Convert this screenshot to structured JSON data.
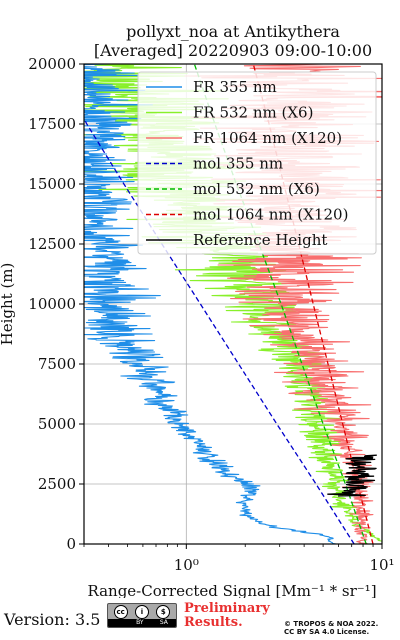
{
  "chart_data": {
    "type": "line",
    "title": "pollyxt_noa at Antikythera",
    "subtitle": "[Averaged] 20220903 09:00-10:00",
    "xlabel": "Range-Corrected Signal [Mm⁻¹ * sr⁻¹]",
    "ylabel": "Height (m)",
    "xscale": "log",
    "xlim": [
      0.3,
      10
    ],
    "ylim": [
      0,
      20000
    ],
    "x_ticks": [
      {
        "value": 1,
        "label": "10⁰"
      },
      {
        "value": 10,
        "label": "10¹"
      }
    ],
    "y_ticks": [
      0,
      2500,
      5000,
      7500,
      10000,
      12500,
      15000,
      17500,
      20000
    ],
    "y_tick_labels": [
      "0",
      "2500",
      "5000",
      "7500",
      "10000",
      "12500",
      "15000",
      "17500",
      "20000"
    ],
    "grid": true,
    "legend_position": "top-right",
    "series": [
      {
        "name": "FR 355 nm",
        "color": "#1f8ee8",
        "style": "solid",
        "kind": "noisy",
        "points": [
          [
            0,
            5.8
          ],
          [
            120,
            5.3
          ],
          [
            250,
            5.5
          ],
          [
            400,
            5.0
          ],
          [
            500,
            4.0
          ],
          [
            700,
            2.8
          ],
          [
            1000,
            2.2
          ],
          [
            1400,
            2.0
          ],
          [
            1800,
            2.0
          ],
          [
            2200,
            2.2
          ],
          [
            2600,
            2.0
          ],
          [
            3000,
            1.6
          ],
          [
            3500,
            1.3
          ],
          [
            4000,
            1.2
          ],
          [
            4500,
            1.05
          ],
          [
            5000,
            0.9
          ],
          [
            5500,
            0.85
          ],
          [
            6000,
            0.75
          ],
          [
            6500,
            0.72
          ],
          [
            7000,
            0.62
          ],
          [
            7500,
            0.58
          ],
          [
            8000,
            0.5
          ],
          [
            8500,
            0.45
          ],
          [
            9000,
            0.45
          ],
          [
            10000,
            0.42
          ],
          [
            11000,
            0.4
          ],
          [
            12000,
            0.38
          ],
          [
            13000,
            0.36
          ],
          [
            14000,
            0.35
          ],
          [
            15000,
            0.34
          ],
          [
            16000,
            0.33
          ],
          [
            17000,
            0.33
          ],
          [
            18000,
            0.33
          ],
          [
            19000,
            0.33
          ],
          [
            20000,
            0.33
          ]
        ],
        "noise": [
          [
            0,
            0.01
          ],
          [
            3000,
            0.03
          ],
          [
            6000,
            0.05
          ],
          [
            8000,
            0.09
          ],
          [
            10000,
            0.12
          ],
          [
            13000,
            0.1
          ],
          [
            20000,
            0.12
          ]
        ]
      },
      {
        "name": "FR 532 nm (X6)",
        "color": "#88f02a",
        "style": "solid",
        "kind": "noisy",
        "points": [
          [
            0,
            10.5
          ],
          [
            300,
            9.0
          ],
          [
            800,
            7.5
          ],
          [
            1500,
            6.5
          ],
          [
            2000,
            6.0
          ],
          [
            3000,
            5.5
          ],
          [
            4000,
            5.0
          ],
          [
            5000,
            4.6
          ],
          [
            6000,
            4.2
          ],
          [
            7000,
            3.8
          ],
          [
            8000,
            3.3
          ],
          [
            9000,
            2.8
          ],
          [
            10000,
            2.4
          ],
          [
            11000,
            2.0
          ],
          [
            12000,
            1.7
          ],
          [
            13000,
            1.3
          ],
          [
            14000,
            1.1
          ],
          [
            15000,
            0.9
          ],
          [
            16000,
            0.8
          ],
          [
            17000,
            0.7
          ],
          [
            18000,
            0.6
          ],
          [
            19000,
            0.5
          ],
          [
            20000,
            0.5
          ]
        ],
        "noise": [
          [
            0,
            0.01
          ],
          [
            4000,
            0.05
          ],
          [
            7000,
            0.08
          ],
          [
            10000,
            0.12
          ],
          [
            13000,
            0.18
          ],
          [
            20000,
            0.22
          ]
        ]
      },
      {
        "name": "FR 1064 nm (X120)",
        "color": "#f87070",
        "style": "solid",
        "kind": "noisy",
        "points": [
          [
            0,
            8.0
          ],
          [
            1500,
            7.8
          ],
          [
            3000,
            7.3
          ],
          [
            4000,
            6.7
          ],
          [
            5000,
            6.0
          ],
          [
            6000,
            5.4
          ],
          [
            7000,
            4.8
          ],
          [
            8000,
            4.3
          ],
          [
            9000,
            3.8
          ],
          [
            10000,
            3.6
          ],
          [
            11000,
            3.5
          ],
          [
            12000,
            3.4
          ],
          [
            13000,
            3.4
          ],
          [
            14000,
            3.5
          ],
          [
            15000,
            3.5
          ],
          [
            16000,
            3.5
          ],
          [
            17000,
            3.5
          ],
          [
            18000,
            3.5
          ],
          [
            19000,
            3.5
          ],
          [
            20000,
            3.5
          ]
        ],
        "noise": [
          [
            0,
            0.02
          ],
          [
            3000,
            0.04
          ],
          [
            5000,
            0.07
          ],
          [
            7000,
            0.09
          ],
          [
            10000,
            0.14
          ],
          [
            13000,
            0.2
          ],
          [
            20000,
            0.25
          ]
        ]
      },
      {
        "name": "mol 355 nm",
        "color": "#0000cc",
        "style": "dashed",
        "kind": "smooth",
        "points": [
          [
            0,
            7.2
          ],
          [
            2500,
            4.6
          ],
          [
            5000,
            2.9
          ],
          [
            7500,
            1.85
          ],
          [
            10000,
            1.18
          ],
          [
            12500,
            0.75
          ],
          [
            15000,
            0.48
          ],
          [
            17500,
            0.31
          ],
          [
            18200,
            0.28
          ]
        ]
      },
      {
        "name": "mol 532 nm (X6)",
        "color": "#00bb00",
        "style": "dashed",
        "kind": "smooth",
        "points": [
          [
            0,
            8.3
          ],
          [
            2500,
            6.5
          ],
          [
            5000,
            5.0
          ],
          [
            7500,
            3.9
          ],
          [
            10000,
            3.05
          ],
          [
            12500,
            2.35
          ],
          [
            15000,
            1.8
          ],
          [
            17500,
            1.4
          ],
          [
            20000,
            1.1
          ]
        ]
      },
      {
        "name": "mol 1064 nm (X120)",
        "color": "#dd0000",
        "style": "dashed",
        "kind": "smooth",
        "points": [
          [
            0,
            9.0
          ],
          [
            2500,
            7.5
          ],
          [
            5000,
            6.3
          ],
          [
            7500,
            5.3
          ],
          [
            10000,
            4.45
          ],
          [
            12500,
            3.75
          ],
          [
            15000,
            3.15
          ],
          [
            17500,
            2.65
          ],
          [
            20000,
            2.2
          ]
        ]
      },
      {
        "name": "Reference Height",
        "color": "#000000",
        "style": "solid",
        "kind": "noisy",
        "points": [
          [
            2000,
            7.0
          ],
          [
            2500,
            7.3
          ],
          [
            3000,
            7.5
          ],
          [
            3500,
            7.4
          ],
          [
            3700,
            8.4
          ]
        ],
        "noise": [
          [
            2000,
            0.05
          ],
          [
            3700,
            0.06
          ]
        ]
      }
    ]
  },
  "footer": {
    "version": "Version: 3.5",
    "license_badge": {
      "top": [
        "cc",
        "i",
        "$"
      ],
      "bottom": [
        "BY",
        "SA"
      ]
    },
    "preliminary_line1": "Preliminary",
    "preliminary_line2": "Results.",
    "copyright_line1": "© TROPOS & NOA 2022.",
    "copyright_line2": "CC BY SA 4.0 License."
  }
}
